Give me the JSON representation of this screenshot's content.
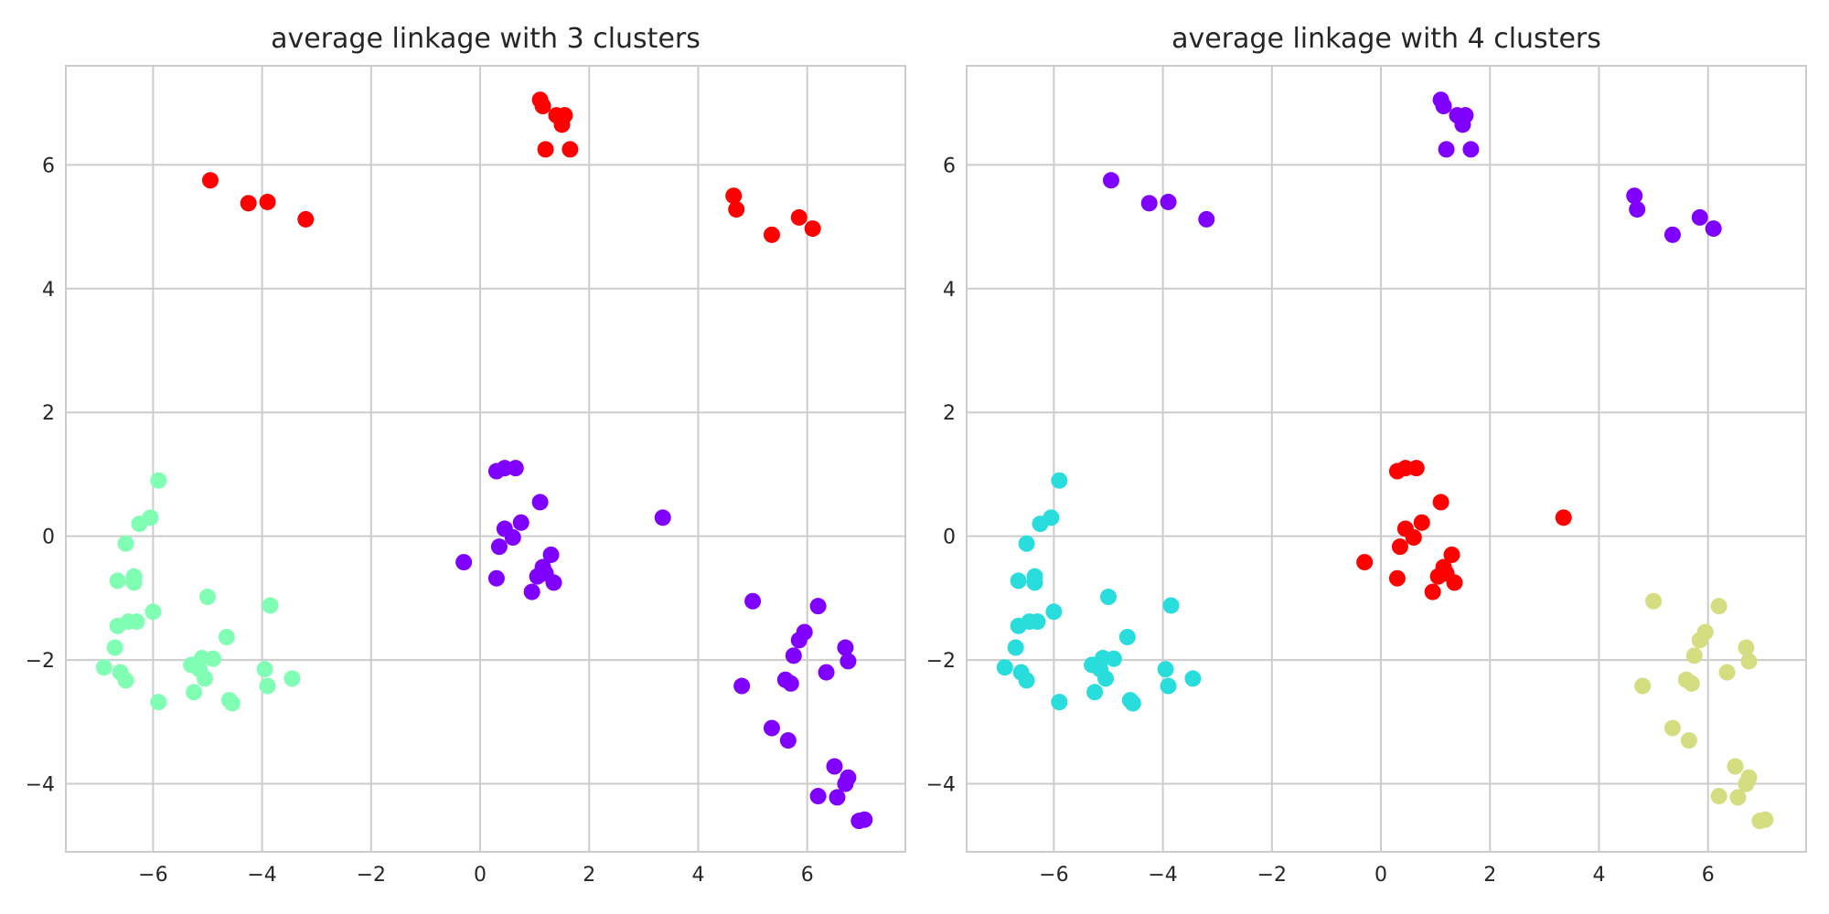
{
  "chart_data": [
    {
      "type": "scatter",
      "title": "average linkage with 3 clusters",
      "xlabel": "",
      "ylabel": "",
      "xlim": [
        -7.6,
        7.8
      ],
      "ylim": [
        -5.1,
        7.6
      ],
      "xticks": [
        -6,
        -4,
        -2,
        0,
        2,
        4,
        6
      ],
      "yticks": [
        -4,
        -2,
        0,
        2,
        4,
        6
      ],
      "grid": true,
      "legend": "none",
      "series": [
        {
          "color": "#ff0000",
          "points": [
            [
              1.1,
              7.05
            ],
            [
              1.15,
              6.95
            ],
            [
              1.4,
              6.8
            ],
            [
              1.55,
              6.8
            ],
            [
              1.5,
              6.65
            ],
            [
              1.2,
              6.25
            ],
            [
              1.65,
              6.25
            ],
            [
              -4.95,
              5.75
            ],
            [
              -4.25,
              5.38
            ],
            [
              -3.9,
              5.4
            ],
            [
              -3.2,
              5.12
            ],
            [
              4.65,
              5.5
            ],
            [
              4.7,
              5.28
            ],
            [
              5.85,
              5.15
            ],
            [
              6.1,
              4.97
            ],
            [
              5.35,
              4.87
            ]
          ]
        },
        {
          "color": "#8000ff",
          "points": [
            [
              0.3,
              1.05
            ],
            [
              0.45,
              1.1
            ],
            [
              0.65,
              1.1
            ],
            [
              1.1,
              0.55
            ],
            [
              0.45,
              0.12
            ],
            [
              0.75,
              0.22
            ],
            [
              0.6,
              -0.02
            ],
            [
              0.35,
              -0.17
            ],
            [
              -0.3,
              -0.42
            ],
            [
              0.3,
              -0.68
            ],
            [
              1.3,
              -0.3
            ],
            [
              1.15,
              -0.5
            ],
            [
              1.2,
              -0.6
            ],
            [
              1.05,
              -0.65
            ],
            [
              1.35,
              -0.75
            ],
            [
              0.95,
              -0.9
            ],
            [
              3.35,
              0.3
            ],
            [
              5.0,
              -1.05
            ],
            [
              6.2,
              -1.13
            ],
            [
              5.95,
              -1.55
            ],
            [
              5.85,
              -1.68
            ],
            [
              6.7,
              -1.8
            ],
            [
              5.75,
              -1.93
            ],
            [
              6.75,
              -2.02
            ],
            [
              6.35,
              -2.2
            ],
            [
              5.6,
              -2.32
            ],
            [
              5.7,
              -2.38
            ],
            [
              4.8,
              -2.42
            ],
            [
              5.35,
              -3.1
            ],
            [
              5.65,
              -3.3
            ],
            [
              6.5,
              -3.72
            ],
            [
              6.75,
              -3.9
            ],
            [
              6.7,
              -4.0
            ],
            [
              6.2,
              -4.2
            ],
            [
              6.55,
              -4.22
            ],
            [
              6.95,
              -4.6
            ],
            [
              7.05,
              -4.58
            ]
          ]
        },
        {
          "color": "#80ffb4",
          "points": [
            [
              -5.9,
              0.9
            ],
            [
              -6.05,
              0.3
            ],
            [
              -6.25,
              0.2
            ],
            [
              -6.5,
              -0.12
            ],
            [
              -6.35,
              -0.65
            ],
            [
              -6.65,
              -0.72
            ],
            [
              -6.35,
              -0.75
            ],
            [
              -5.0,
              -0.98
            ],
            [
              -3.85,
              -1.12
            ],
            [
              -6.0,
              -1.22
            ],
            [
              -6.45,
              -1.38
            ],
            [
              -6.3,
              -1.38
            ],
            [
              -6.65,
              -1.45
            ],
            [
              -4.65,
              -1.63
            ],
            [
              -6.7,
              -1.8
            ],
            [
              -5.1,
              -1.97
            ],
            [
              -4.9,
              -1.98
            ],
            [
              -5.3,
              -2.08
            ],
            [
              -5.15,
              -2.15
            ],
            [
              -6.9,
              -2.12
            ],
            [
              -6.6,
              -2.2
            ],
            [
              -3.95,
              -2.15
            ],
            [
              -5.05,
              -2.3
            ],
            [
              -6.5,
              -2.33
            ],
            [
              -3.45,
              -2.3
            ],
            [
              -3.9,
              -2.42
            ],
            [
              -5.25,
              -2.52
            ],
            [
              -5.9,
              -2.68
            ],
            [
              -4.6,
              -2.65
            ],
            [
              -4.55,
              -2.7
            ]
          ]
        }
      ]
    },
    {
      "type": "scatter",
      "title": "average linkage with 4 clusters",
      "xlabel": "",
      "ylabel": "",
      "xlim": [
        -7.6,
        7.8
      ],
      "ylim": [
        -5.1,
        7.6
      ],
      "xticks": [
        -6,
        -4,
        -2,
        0,
        2,
        4,
        6
      ],
      "yticks": [
        -4,
        -2,
        0,
        2,
        4,
        6
      ],
      "grid": true,
      "legend": "none",
      "series": [
        {
          "color": "#8000ff",
          "points": [
            [
              1.1,
              7.05
            ],
            [
              1.15,
              6.95
            ],
            [
              1.4,
              6.8
            ],
            [
              1.55,
              6.8
            ],
            [
              1.5,
              6.65
            ],
            [
              1.2,
              6.25
            ],
            [
              1.65,
              6.25
            ],
            [
              -4.95,
              5.75
            ],
            [
              -4.25,
              5.38
            ],
            [
              -3.9,
              5.4
            ],
            [
              -3.2,
              5.12
            ],
            [
              4.65,
              5.5
            ],
            [
              4.7,
              5.28
            ],
            [
              5.85,
              5.15
            ],
            [
              6.1,
              4.97
            ],
            [
              5.35,
              4.87
            ]
          ]
        },
        {
          "color": "#ff0000",
          "points": [
            [
              0.3,
              1.05
            ],
            [
              0.45,
              1.1
            ],
            [
              0.65,
              1.1
            ],
            [
              1.1,
              0.55
            ],
            [
              0.45,
              0.12
            ],
            [
              0.75,
              0.22
            ],
            [
              0.6,
              -0.02
            ],
            [
              0.35,
              -0.17
            ],
            [
              -0.3,
              -0.42
            ],
            [
              0.3,
              -0.68
            ],
            [
              1.3,
              -0.3
            ],
            [
              1.15,
              -0.5
            ],
            [
              1.2,
              -0.6
            ],
            [
              1.05,
              -0.65
            ],
            [
              1.35,
              -0.75
            ],
            [
              0.95,
              -0.9
            ],
            [
              3.35,
              0.3
            ]
          ]
        },
        {
          "color": "#2adddd",
          "points": [
            [
              -5.9,
              0.9
            ],
            [
              -6.05,
              0.3
            ],
            [
              -6.25,
              0.2
            ],
            [
              -6.5,
              -0.12
            ],
            [
              -6.35,
              -0.65
            ],
            [
              -6.65,
              -0.72
            ],
            [
              -6.35,
              -0.75
            ],
            [
              -5.0,
              -0.98
            ],
            [
              -3.85,
              -1.12
            ],
            [
              -6.0,
              -1.22
            ],
            [
              -6.45,
              -1.38
            ],
            [
              -6.3,
              -1.38
            ],
            [
              -6.65,
              -1.45
            ],
            [
              -4.65,
              -1.63
            ],
            [
              -6.7,
              -1.8
            ],
            [
              -5.1,
              -1.97
            ],
            [
              -4.9,
              -1.98
            ],
            [
              -5.3,
              -2.08
            ],
            [
              -5.15,
              -2.15
            ],
            [
              -6.9,
              -2.12
            ],
            [
              -6.6,
              -2.2
            ],
            [
              -3.95,
              -2.15
            ],
            [
              -5.05,
              -2.3
            ],
            [
              -6.5,
              -2.33
            ],
            [
              -3.45,
              -2.3
            ],
            [
              -3.9,
              -2.42
            ],
            [
              -5.25,
              -2.52
            ],
            [
              -5.9,
              -2.68
            ],
            [
              -4.6,
              -2.65
            ],
            [
              -4.55,
              -2.7
            ]
          ]
        },
        {
          "color": "#d4dd80",
          "points": [
            [
              5.0,
              -1.05
            ],
            [
              6.2,
              -1.13
            ],
            [
              5.95,
              -1.55
            ],
            [
              5.85,
              -1.68
            ],
            [
              6.7,
              -1.8
            ],
            [
              5.75,
              -1.93
            ],
            [
              6.75,
              -2.02
            ],
            [
              6.35,
              -2.2
            ],
            [
              5.6,
              -2.32
            ],
            [
              5.7,
              -2.38
            ],
            [
              4.8,
              -2.42
            ],
            [
              5.35,
              -3.1
            ],
            [
              5.65,
              -3.3
            ],
            [
              6.5,
              -3.72
            ],
            [
              6.75,
              -3.9
            ],
            [
              6.7,
              -4.0
            ],
            [
              6.2,
              -4.2
            ],
            [
              6.55,
              -4.22
            ],
            [
              6.95,
              -4.6
            ],
            [
              7.05,
              -4.58
            ]
          ]
        }
      ]
    }
  ]
}
